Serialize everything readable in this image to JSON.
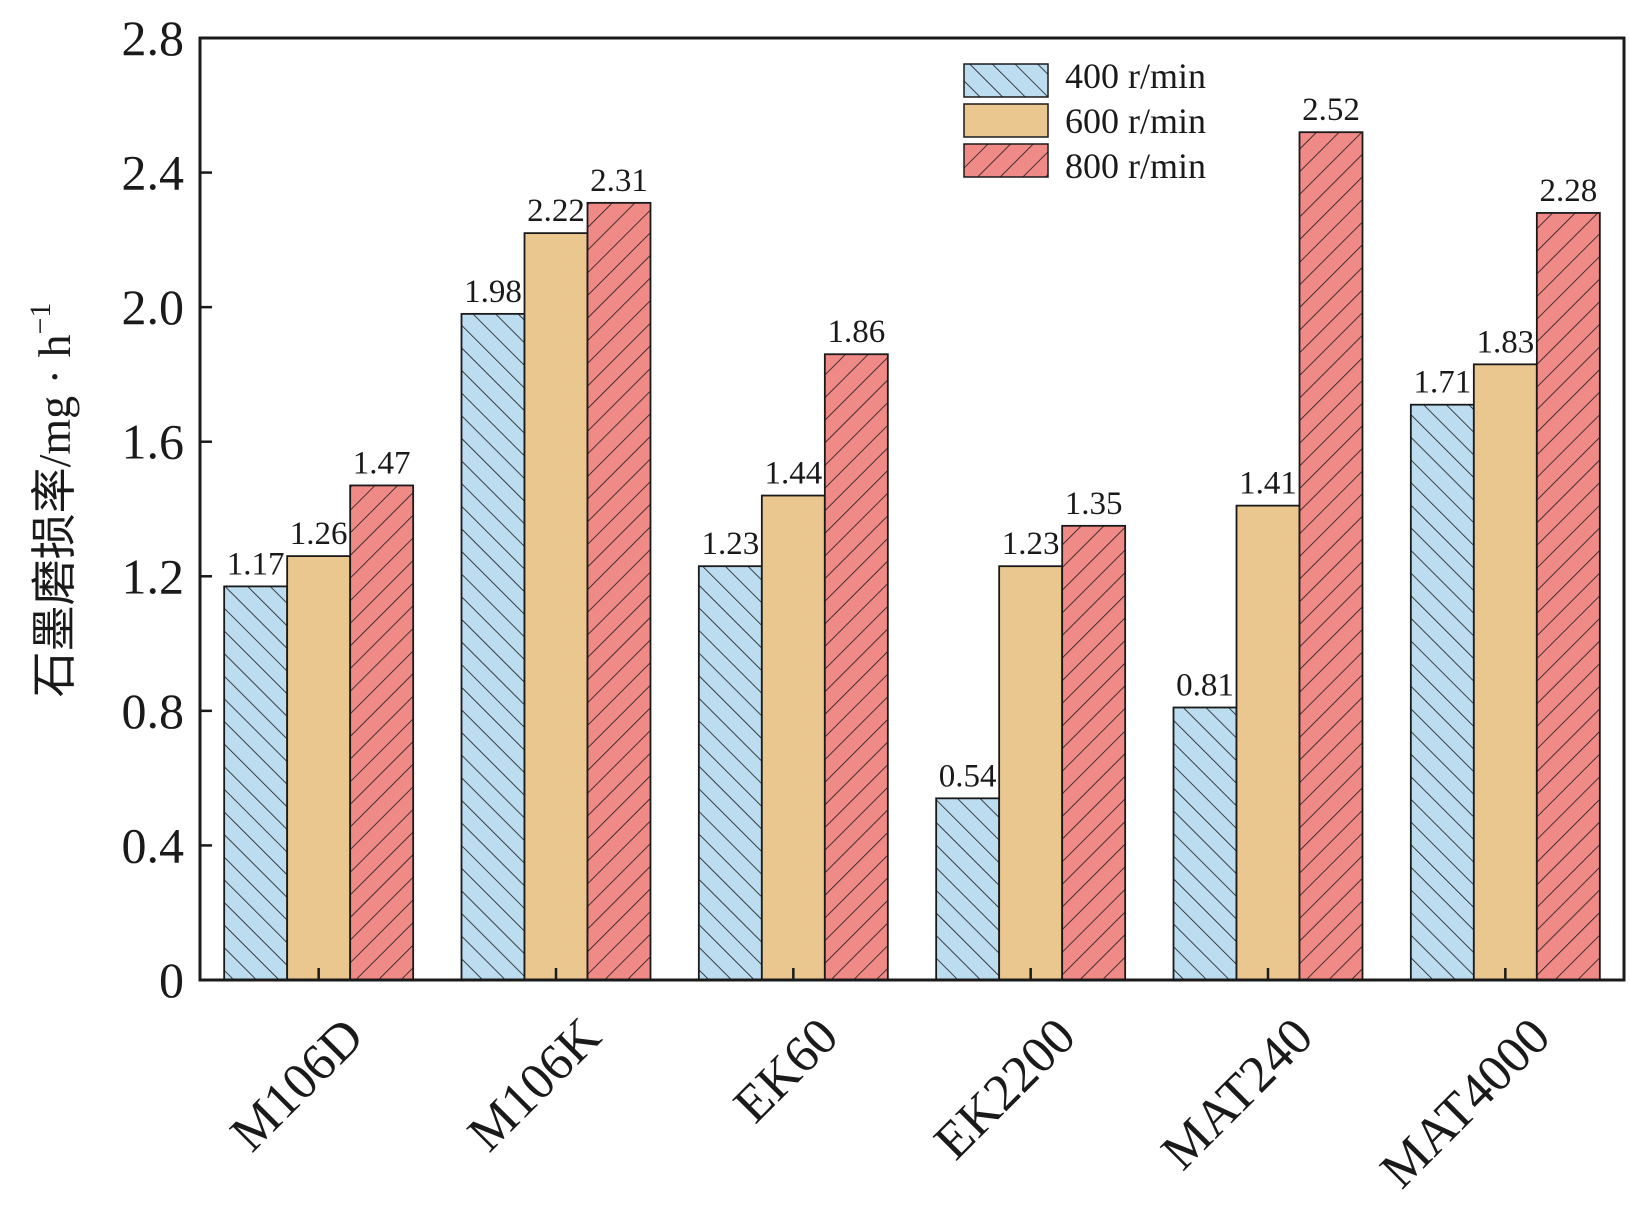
{
  "chart_data": {
    "type": "bar",
    "title": "",
    "xlabel": "",
    "ylabel": "石墨磨损率/mg · h",
    "ylabel_superscript": "−1",
    "ylim": [
      0,
      2.8
    ],
    "yticks": [
      0,
      0.4,
      0.8,
      1.2,
      1.6,
      2.0,
      2.4,
      2.8
    ],
    "ytick_labels": [
      "0",
      "0.4",
      "0.8",
      "1.2",
      "1.6",
      "2.0",
      "2.4",
      "2.8"
    ],
    "categories": [
      "M106D",
      "M106K",
      "EK60",
      "EK2200",
      "MAT240",
      "MAT4000"
    ],
    "series": [
      {
        "name": "400 r/min",
        "values": [
          1.17,
          1.98,
          1.23,
          0.54,
          0.81,
          1.71
        ],
        "labels": [
          "1.17",
          "1.98",
          "1.23",
          "0.54",
          "0.81",
          "1.71"
        ],
        "color": "#bcdcef",
        "hatch": "forward"
      },
      {
        "name": "600 r/min",
        "values": [
          1.26,
          2.22,
          1.44,
          1.23,
          1.41,
          1.83
        ],
        "labels": [
          "1.26",
          "2.22",
          "1.44",
          "1.23",
          "1.41",
          "1.83"
        ],
        "color": "#eac78f",
        "hatch": "none"
      },
      {
        "name": "800 r/min",
        "values": [
          1.47,
          2.31,
          1.86,
          1.35,
          2.52,
          2.28
        ],
        "labels": [
          "1.47",
          "2.31",
          "1.86",
          "1.35",
          "2.52",
          "2.28"
        ],
        "color": "#f08a87",
        "hatch": "backward"
      }
    ],
    "legend_position": "top-right",
    "grid": false
  }
}
